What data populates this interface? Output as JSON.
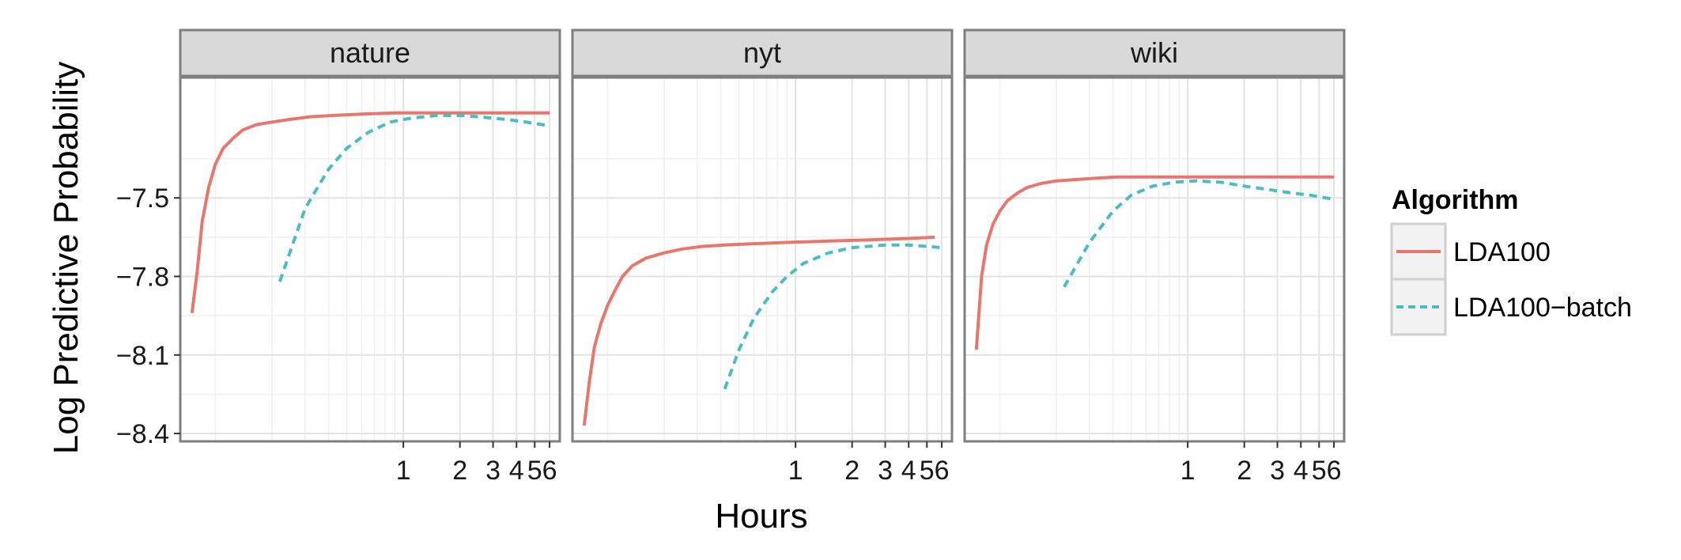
{
  "chart_data": {
    "type": "line",
    "facets": [
      "nature",
      "nyt",
      "wiki"
    ],
    "xlabel": "Hours",
    "ylabel": "Log Predictive Probability",
    "x_scale": "log",
    "xlim": [
      0.065,
      6.8
    ],
    "ylim": [
      -8.43,
      -7.04
    ],
    "x_ticks": [
      1,
      2,
      3,
      4,
      5,
      6
    ],
    "x_tick_labels": [
      "1",
      "2",
      "3",
      "4",
      "5",
      "6"
    ],
    "y_ticks": [
      -7.5,
      -7.8,
      -8.1,
      -8.4
    ],
    "y_tick_labels": [
      "−7.5",
      "−7.8",
      "−8.1",
      "−8.4"
    ],
    "grid": true,
    "legend": {
      "title": "Algorithm",
      "position": "right",
      "entries": [
        "LDA100",
        "LDA100−batch"
      ]
    },
    "colors": {
      "LDA100": "#e8766d",
      "LDA100-batch": "#4dbbc3"
    },
    "panels": [
      {
        "name": "nature",
        "series": [
          {
            "name": "LDA100",
            "style": "solid",
            "x": [
              0.075,
              0.08,
              0.085,
              0.092,
              0.1,
              0.11,
              0.125,
              0.14,
              0.165,
              0.2,
              0.25,
              0.32,
              0.42,
              0.6,
              0.9,
              1.5,
              2.5,
              4,
              6
            ],
            "y": [
              -7.94,
              -7.78,
              -7.59,
              -7.46,
              -7.37,
              -7.31,
              -7.27,
              -7.24,
              -7.22,
              -7.21,
              -7.2,
              -7.19,
              -7.185,
              -7.18,
              -7.175,
              -7.175,
              -7.175,
              -7.175,
              -7.175
            ]
          },
          {
            "name": "LDA100−batch",
            "style": "dashed",
            "x": [
              0.22,
              0.3,
              0.4,
              0.5,
              0.65,
              0.85,
              1.1,
              1.5,
              2,
              2.5,
              3.5,
              4.5,
              6
            ],
            "y": [
              -7.82,
              -7.54,
              -7.39,
              -7.31,
              -7.25,
              -7.21,
              -7.195,
              -7.185,
              -7.185,
              -7.19,
              -7.2,
              -7.21,
              -7.225
            ]
          }
        ]
      },
      {
        "name": "nyt",
        "series": [
          {
            "name": "LDA100",
            "style": "solid",
            "x": [
              0.075,
              0.08,
              0.085,
              0.092,
              0.1,
              0.11,
              0.12,
              0.135,
              0.16,
              0.2,
              0.25,
              0.32,
              0.42,
              0.6,
              0.9,
              1.5,
              2.5,
              4,
              5.5
            ],
            "y": [
              -8.37,
              -8.2,
              -8.07,
              -7.98,
              -7.91,
              -7.85,
              -7.8,
              -7.76,
              -7.73,
              -7.71,
              -7.695,
              -7.685,
              -7.68,
              -7.675,
              -7.67,
              -7.665,
              -7.66,
              -7.655,
              -7.65
            ]
          },
          {
            "name": "LDA100−batch",
            "style": "dashed",
            "x": [
              0.42,
              0.5,
              0.6,
              0.75,
              0.9,
              1.1,
              1.5,
              2,
              3,
              4,
              5,
              6
            ],
            "y": [
              -8.23,
              -8.08,
              -7.96,
              -7.86,
              -7.8,
              -7.75,
              -7.71,
              -7.69,
              -7.68,
              -7.68,
              -7.685,
              -7.69
            ]
          }
        ]
      },
      {
        "name": "wiki",
        "series": [
          {
            "name": "LDA100",
            "style": "solid",
            "x": [
              0.075,
              0.08,
              0.085,
              0.092,
              0.1,
              0.11,
              0.125,
              0.14,
              0.165,
              0.2,
              0.25,
              0.32,
              0.42,
              0.6,
              0.9,
              1.5,
              2.5,
              4,
              6
            ],
            "y": [
              -8.08,
              -7.8,
              -7.68,
              -7.6,
              -7.55,
              -7.51,
              -7.48,
              -7.46,
              -7.445,
              -7.435,
              -7.43,
              -7.425,
              -7.42,
              -7.42,
              -7.42,
              -7.42,
              -7.42,
              -7.42,
              -7.42
            ]
          },
          {
            "name": "LDA100−batch",
            "style": "dashed",
            "x": [
              0.22,
              0.3,
              0.4,
              0.5,
              0.65,
              0.85,
              1.1,
              1.5,
              2,
              2.5,
              3.5,
              4.5,
              6
            ],
            "y": [
              -7.84,
              -7.67,
              -7.55,
              -7.49,
              -7.455,
              -7.44,
              -7.435,
              -7.44,
              -7.455,
              -7.465,
              -7.48,
              -7.49,
              -7.505
            ]
          }
        ]
      }
    ]
  }
}
